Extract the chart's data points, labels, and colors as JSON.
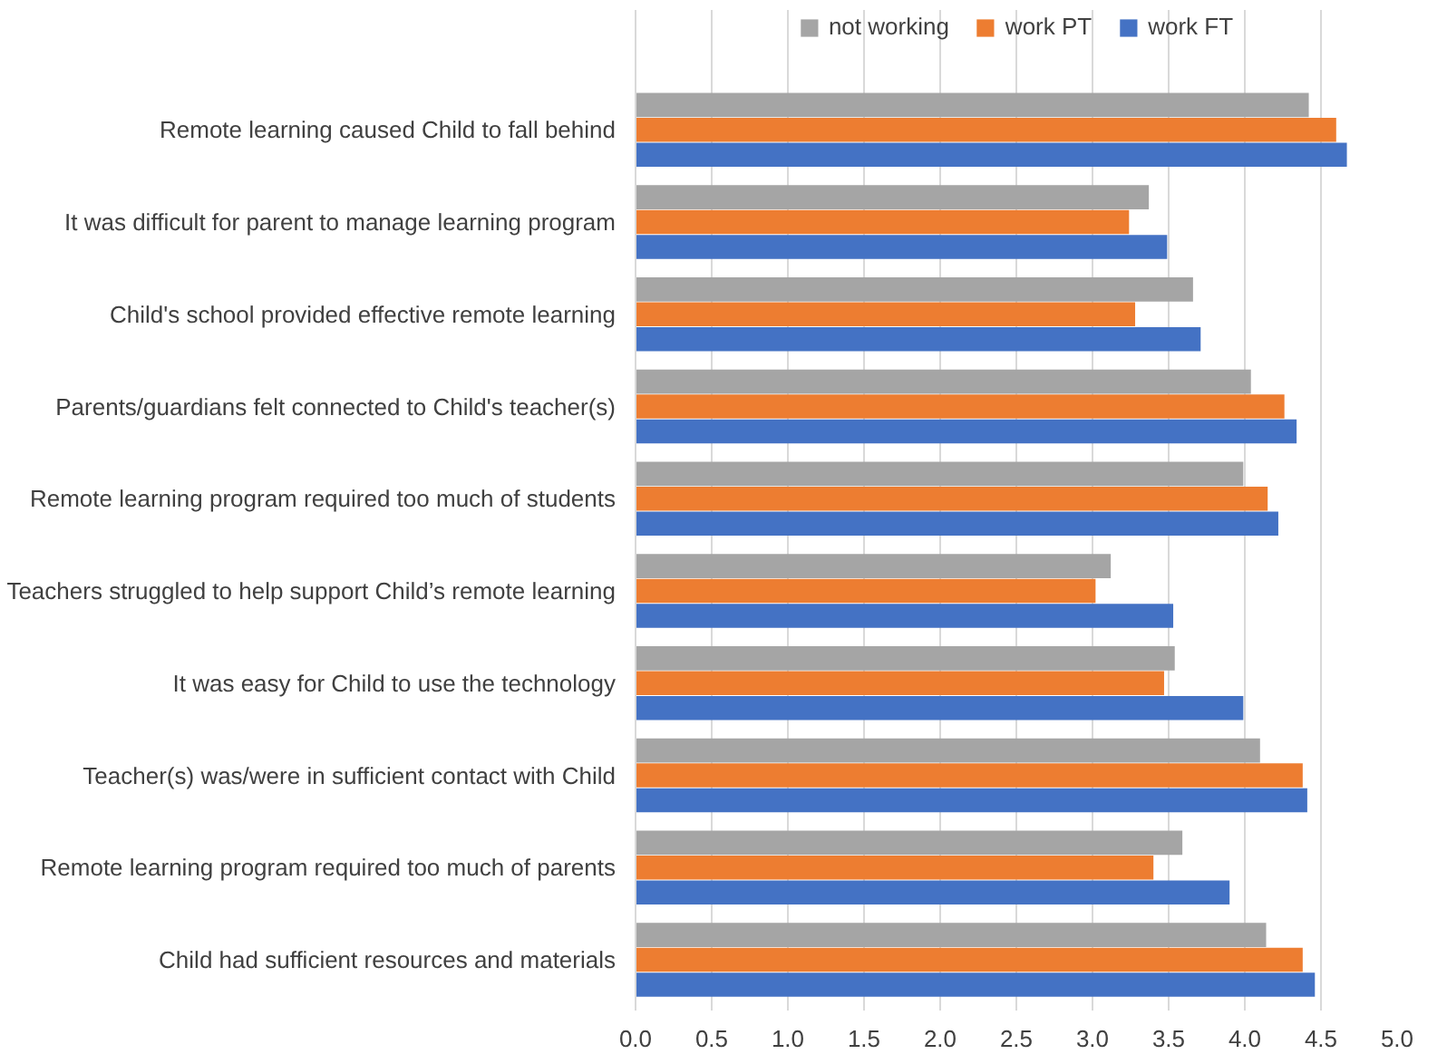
{
  "chart_data": {
    "type": "bar",
    "orientation": "horizontal",
    "categories": [
      "Remote learning caused Child to fall behind",
      "It was difficult for parent to manage learning program",
      "Child's school provided effective remote learning",
      "Parents/guardians felt connected to Child's teacher(s)",
      "Remote learning program required too much of students",
      "Teachers struggled to help support Child’s remote learning",
      "It was easy for Child to use the technology",
      "Teacher(s) was/were in sufficient contact with Child",
      "Remote learning program required too much of parents",
      "Child had sufficient resources and materials"
    ],
    "series": [
      {
        "name": "not working",
        "color": "#a5a5a5",
        "values": [
          4.42,
          3.37,
          3.66,
          4.04,
          3.99,
          3.12,
          3.54,
          4.1,
          3.59,
          4.14
        ]
      },
      {
        "name": "work PT",
        "color": "#ed7d31",
        "values": [
          4.6,
          3.24,
          3.28,
          4.26,
          4.15,
          3.02,
          3.47,
          4.38,
          3.4,
          4.38
        ]
      },
      {
        "name": "work FT",
        "color": "#4472c4",
        "values": [
          4.67,
          3.49,
          3.71,
          4.34,
          4.22,
          3.53,
          3.99,
          4.41,
          3.9,
          4.46
        ]
      }
    ],
    "xlim": [
      0,
      5
    ],
    "xticks": [
      {
        "value": 0,
        "label": "0.0"
      },
      {
        "value": 0.5,
        "label": "0.5"
      },
      {
        "value": 1,
        "label": "1.0"
      },
      {
        "value": 1.5,
        "label": "1.5"
      },
      {
        "value": 2,
        "label": "2.0"
      },
      {
        "value": 2.5,
        "label": "2.5"
      },
      {
        "value": 3,
        "label": "3.0"
      },
      {
        "value": 3.5,
        "label": "3.5"
      },
      {
        "value": 4,
        "label": "4.0"
      },
      {
        "value": 4.5,
        "label": "4.5"
      },
      {
        "value": 5,
        "label": "5.0"
      }
    ],
    "grid": "x",
    "legend": "top"
  }
}
